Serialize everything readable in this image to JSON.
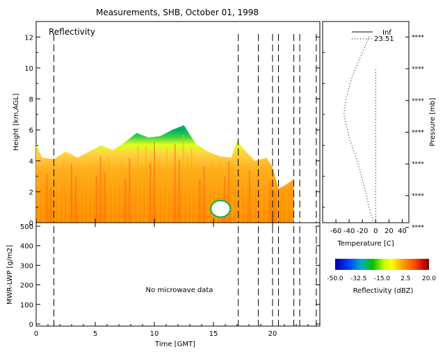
{
  "title": "Measurements, SHB, October 01, 1998",
  "chart_data": [
    {
      "id": "reflectivity",
      "type": "heatmap",
      "panel_label": "Reflectivity",
      "ylabel": "Height [km,AGL]",
      "xlim": [
        0,
        24
      ],
      "ylim": [
        0,
        13
      ],
      "yticks": [
        0,
        2,
        4,
        6,
        8,
        10,
        12
      ],
      "xticks": [
        0,
        5,
        10,
        15,
        20
      ],
      "grid": false,
      "dashed_lines_hours": [
        1.5,
        17.1,
        18.8,
        20.0,
        20.5,
        21.8,
        22.3,
        23.7
      ],
      "data_end_hour": 21.8,
      "echo_top_km": [
        [
          0.0,
          5.1
        ],
        [
          0.5,
          4.2
        ],
        [
          1.5,
          4.1
        ],
        [
          2.5,
          4.6
        ],
        [
          3.5,
          4.2
        ],
        [
          4.5,
          4.6
        ],
        [
          5.5,
          5.0
        ],
        [
          6.5,
          4.7
        ],
        [
          7.5,
          5.2
        ],
        [
          8.5,
          5.8
        ],
        [
          9.5,
          5.5
        ],
        [
          10.5,
          5.6
        ],
        [
          11.5,
          6.0
        ],
        [
          12.5,
          6.3
        ],
        [
          13.5,
          5.1
        ],
        [
          14.5,
          4.6
        ],
        [
          15.5,
          4.3
        ],
        [
          16.5,
          4.2
        ],
        [
          17.0,
          5.3
        ],
        [
          17.5,
          4.8
        ],
        [
          18.5,
          4.0
        ],
        [
          19.5,
          4.2
        ],
        [
          20.0,
          3.6
        ],
        [
          20.5,
          2.2
        ],
        [
          21.0,
          2.4
        ],
        [
          21.8,
          2.8
        ]
      ]
    },
    {
      "id": "pressure-profile",
      "type": "line",
      "xlabel": "Temperature [C]",
      "ylabel": "Pressure [mb]",
      "xticks": [
        "-60",
        "-40",
        "-20",
        "0",
        "20",
        "40"
      ],
      "xlim": [
        -80,
        50
      ],
      "yticks": [
        "****",
        "****",
        "****",
        "****",
        "****",
        "****",
        "****"
      ],
      "series": [
        {
          "name": "Inf",
          "style": "solid",
          "x": [],
          "y": []
        },
        {
          "name": "23.51",
          "style": "dotted",
          "x": [
            -10,
            -20,
            -35,
            -45,
            -48,
            -40,
            -28,
            -18,
            -10,
            -3
          ],
          "y": [
            12,
            11,
            9.5,
            8,
            7,
            5.5,
            4,
            2.5,
            1,
            0
          ]
        },
        {
          "name": "",
          "style": "dotted",
          "x": [
            0,
            0
          ],
          "y": [
            0,
            10
          ]
        }
      ]
    },
    {
      "id": "lwp",
      "type": "line",
      "ylabel": "MWR-LWP [g/m2]",
      "xlabel": "Time [GMT]",
      "xlim": [
        0,
        24
      ],
      "ylim": [
        0,
        500
      ],
      "yticks": [
        0,
        100,
        200,
        300,
        400,
        500
      ],
      "xticks": [
        0,
        5,
        10,
        15,
        20
      ],
      "annotation": "No microwave data",
      "series": []
    },
    {
      "id": "colorbar",
      "type": "heatmap",
      "title": "Reflectivity (dBZ)",
      "ticks": [
        "-50.0",
        "-32.5",
        "-15.0",
        "2.5",
        "20.0"
      ],
      "range": [
        -50,
        20
      ]
    }
  ],
  "colors": {
    "low": "#0000a0",
    "mid": "#00c000",
    "yellow": "#ffff00",
    "orange": "#ff8000",
    "high": "#800000"
  }
}
